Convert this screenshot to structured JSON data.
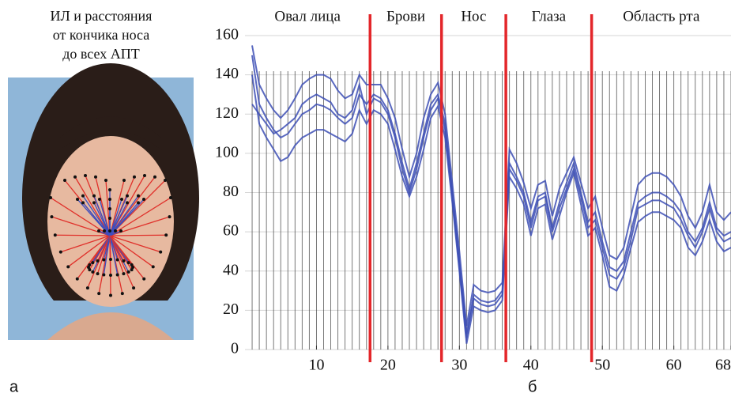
{
  "figure": {
    "caption_lines": [
      "ИЛ и расстояния",
      "от кончика носа",
      "до всех АПТ"
    ],
    "panel_labels": [
      "а",
      "б"
    ]
  },
  "chart_data": {
    "type": "line",
    "regions": [
      "Овал лица",
      "Брови",
      "Нос",
      "Глаза",
      "Область рта"
    ],
    "separators": [
      17.5,
      27.5,
      36.5,
      48.5
    ],
    "separator_color": "#e3262a",
    "x": [
      1,
      2,
      3,
      4,
      5,
      6,
      7,
      8,
      9,
      10,
      11,
      12,
      13,
      14,
      15,
      16,
      17,
      18,
      19,
      20,
      21,
      22,
      23,
      24,
      25,
      26,
      27,
      28,
      29,
      30,
      31,
      32,
      33,
      34,
      35,
      36,
      37,
      38,
      39,
      40,
      41,
      42,
      43,
      44,
      45,
      46,
      47,
      48,
      49,
      50,
      51,
      52,
      53,
      54,
      55,
      56,
      57,
      58,
      59,
      60,
      61,
      62,
      63,
      64,
      65,
      66,
      67,
      68
    ],
    "xlim": [
      0,
      68
    ],
    "xticks": [
      10,
      20,
      30,
      40,
      50,
      60,
      68
    ],
    "ylim": [
      0,
      160
    ],
    "yticks": [
      0,
      20,
      40,
      60,
      80,
      100,
      120,
      140,
      160
    ],
    "grid": true,
    "series": [
      {
        "color": "#3d4fb5",
        "values": [
          150,
          125,
          118,
          112,
          108,
          110,
          115,
          120,
          122,
          125,
          124,
          122,
          118,
          115,
          118,
          130,
          125,
          130,
          128,
          122,
          110,
          95,
          82,
          95,
          110,
          125,
          130,
          115,
          80,
          45,
          8,
          28,
          25,
          24,
          25,
          30,
          95,
          88,
          80,
          65,
          78,
          80,
          62,
          75,
          85,
          95,
          80,
          65,
          70,
          55,
          42,
          40,
          45,
          60,
          75,
          78,
          80,
          80,
          78,
          75,
          70,
          60,
          55,
          62,
          75,
          62,
          58,
          60
        ]
      },
      {
        "color": "#3d4fb5",
        "values": [
          155,
          135,
          128,
          122,
          118,
          122,
          128,
          135,
          138,
          140,
          140,
          138,
          132,
          128,
          130,
          140,
          135,
          135,
          135,
          128,
          118,
          102,
          88,
          100,
          118,
          130,
          136,
          120,
          85,
          50,
          12,
          33,
          30,
          29,
          30,
          34,
          102,
          95,
          85,
          72,
          84,
          86,
          68,
          82,
          90,
          98,
          85,
          72,
          78,
          62,
          48,
          46,
          52,
          68,
          84,
          88,
          90,
          90,
          88,
          84,
          78,
          68,
          62,
          70,
          84,
          70,
          66,
          70
        ]
      },
      {
        "color": "#3d4fb5",
        "values": [
          140,
          115,
          108,
          102,
          96,
          98,
          104,
          108,
          110,
          112,
          112,
          110,
          108,
          106,
          110,
          122,
          115,
          122,
          120,
          115,
          102,
          88,
          78,
          88,
          102,
          118,
          124,
          108,
          75,
          40,
          3,
          22,
          20,
          19,
          20,
          25,
          88,
          82,
          74,
          58,
          72,
          74,
          56,
          68,
          80,
          90,
          74,
          58,
          62,
          48,
          32,
          30,
          38,
          52,
          65,
          68,
          70,
          70,
          68,
          66,
          62,
          52,
          48,
          55,
          66,
          55,
          50,
          52
        ]
      },
      {
        "color": "#3d4fb5",
        "values": [
          125,
          120,
          115,
          110,
          112,
          115,
          118,
          125,
          128,
          130,
          128,
          126,
          120,
          118,
          122,
          135,
          120,
          128,
          126,
          120,
          108,
          92,
          80,
          92,
          108,
          122,
          128,
          112,
          78,
          42,
          6,
          26,
          23,
          22,
          23,
          28,
          92,
          86,
          78,
          62,
          76,
          78,
          60,
          72,
          82,
          92,
          78,
          62,
          66,
          52,
          38,
          36,
          42,
          56,
          72,
          74,
          76,
          76,
          74,
          72,
          66,
          58,
          52,
          60,
          72,
          60,
          55,
          57
        ]
      }
    ]
  }
}
